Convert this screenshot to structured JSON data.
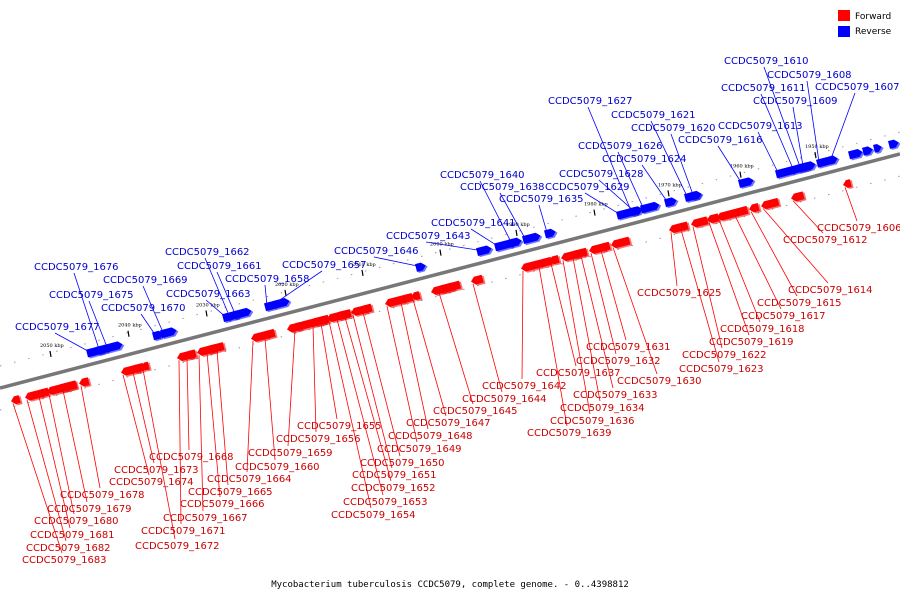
{
  "legend": [
    {
      "label": "Forward",
      "color": "#ff0000"
    },
    {
      "label": "Reverse",
      "color": "#0000ff"
    }
  ],
  "caption": "Mycobacterium tuberculosis CCDC5079, complete genome. - 0..4398812",
  "scale_ticks": [
    "1950 kbp",
    "1960 kbp",
    "1970 kbp",
    "1980 kbp",
    "1990 kbp",
    "2000 kbp",
    "2010 kbp",
    "2020 kbp",
    "2030 kbp",
    "2040 kbp",
    "2050 kbp"
  ],
  "colors": {
    "forward": "#ff0000",
    "reverse": "#0000ff",
    "forward_text": "#cc0000",
    "reverse_text": "#0000cc",
    "backbone": "#777777"
  },
  "reverse_genes": [
    "CCDC5079_1607",
    "CCDC5079_1608",
    "CCDC5079_1609",
    "CCDC5079_1610",
    "CCDC5079_1611",
    "CCDC5079_1613",
    "CCDC5079_1616",
    "CCDC5079_1620",
    "CCDC5079_1621",
    "CCDC5079_1624",
    "CCDC5079_1626",
    "CCDC5079_1627",
    "CCDC5079_1628",
    "CCDC5079_1629",
    "CCDC5079_1635",
    "CCDC5079_1638",
    "CCDC5079_1640",
    "CCDC5079_1641",
    "CCDC5079_1643",
    "CCDC5079_1646",
    "CCDC5079_1657",
    "CCDC5079_1658",
    "CCDC5079_1661",
    "CCDC5079_1662",
    "CCDC5079_1663",
    "CCDC5079_1669",
    "CCDC5079_1670",
    "CCDC5079_1675",
    "CCDC5079_1676",
    "CCDC5079_1677"
  ],
  "forward_genes": [
    "CCDC5079_1606",
    "CCDC5079_1612",
    "CCDC5079_1614",
    "CCDC5079_1615",
    "CCDC5079_1617",
    "CCDC5079_1618",
    "CCDC5079_1619",
    "CCDC5079_1622",
    "CCDC5079_1623",
    "CCDC5079_1625",
    "CCDC5079_1630",
    "CCDC5079_1631",
    "CCDC5079_1632",
    "CCDC5079_1633",
    "CCDC5079_1634",
    "CCDC5079_1636",
    "CCDC5079_1637",
    "CCDC5079_1639",
    "CCDC5079_1642",
    "CCDC5079_1644",
    "CCDC5079_1645",
    "CCDC5079_1647",
    "CCDC5079_1648",
    "CCDC5079_1649",
    "CCDC5079_1650",
    "CCDC5079_1651",
    "CCDC5079_1652",
    "CCDC5079_1653",
    "CCDC5079_1654",
    "CCDC5079_1655",
    "CCDC5079_1656",
    "CCDC5079_1659",
    "CCDC5079_1660",
    "CCDC5079_1664",
    "CCDC5079_1665",
    "CCDC5079_1666",
    "CCDC5079_1667",
    "CCDC5079_1668",
    "CCDC5079_1671",
    "CCDC5079_1672",
    "CCDC5079_1673",
    "CCDC5079_1674",
    "CCDC5079_1678",
    "CCDC5079_1679",
    "CCDC5079_1680",
    "CCDC5079_1681",
    "CCDC5079_1682",
    "CCDC5079_1683"
  ]
}
